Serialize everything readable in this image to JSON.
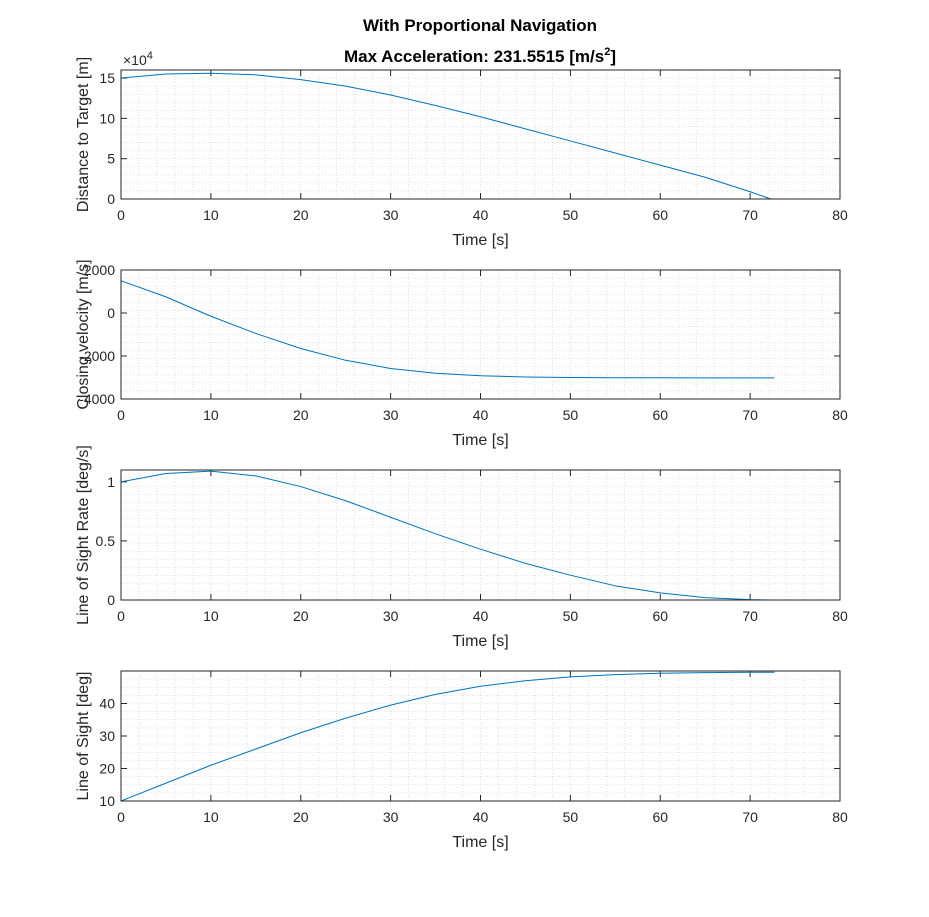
{
  "figure": {
    "title_line1": "With Proportional Navigation",
    "title_line2_prefix": "Max Acceleration: 231.5515 [m/s",
    "title_line2_sup": "2",
    "title_line2_suffix": "]"
  },
  "colors": {
    "line": "#0072BD",
    "grid": "#d0d0d0",
    "axis": "#262626"
  },
  "chart_data": [
    {
      "type": "line",
      "ylabel": "Distance to Target [m]",
      "xlabel": "Time [s]",
      "xlim": [
        0,
        80
      ],
      "ylim": [
        0,
        16
      ],
      "xticks": [
        "0",
        "10",
        "20",
        "30",
        "40",
        "50",
        "60",
        "70",
        "80"
      ],
      "yticks": [
        "0",
        "5",
        "10",
        "15"
      ],
      "y_exponent_base": "×10",
      "y_exponent_power": "4",
      "grid": true,
      "series": [
        {
          "x": [
            0,
            5,
            10,
            15,
            20,
            25,
            30,
            35,
            40,
            45,
            50,
            55,
            60,
            65,
            70,
            72.3
          ],
          "y": [
            15.0,
            15.5,
            15.6,
            15.4,
            14.8,
            14.0,
            12.9,
            11.6,
            10.2,
            8.7,
            7.2,
            5.7,
            4.2,
            2.7,
            0.9,
            0.0
          ]
        }
      ]
    },
    {
      "type": "line",
      "ylabel": "Closing velocity [m/s]",
      "xlabel": "Time [s]",
      "xlim": [
        0,
        80
      ],
      "ylim": [
        -4000,
        2000
      ],
      "xticks": [
        "0",
        "10",
        "20",
        "30",
        "40",
        "50",
        "60",
        "70",
        "80"
      ],
      "yticks": [
        "-4000",
        "-2000",
        "0",
        "2000"
      ],
      "grid": true,
      "series": [
        {
          "x": [
            0,
            5,
            10,
            15,
            20,
            25,
            30,
            35,
            40,
            45,
            50,
            55,
            60,
            65,
            70,
            72.7
          ],
          "y": [
            1500,
            750,
            -150,
            -950,
            -1650,
            -2200,
            -2580,
            -2800,
            -2920,
            -2975,
            -3000,
            -3010,
            -3010,
            -3015,
            -3015,
            -3015
          ]
        }
      ]
    },
    {
      "type": "line",
      "ylabel": "Line of Sight Rate [deg/s]",
      "xlabel": "Time [s]",
      "xlim": [
        0,
        80
      ],
      "ylim": [
        0,
        1.1
      ],
      "xticks": [
        "0",
        "10",
        "20",
        "30",
        "40",
        "50",
        "60",
        "70",
        "80"
      ],
      "yticks": [
        "0",
        "0.5",
        "1"
      ],
      "grid": true,
      "series": [
        {
          "x": [
            0,
            5,
            10,
            15,
            20,
            25,
            30,
            35,
            40,
            45,
            50,
            55,
            60,
            65,
            70,
            72.7
          ],
          "y": [
            1.0,
            1.07,
            1.09,
            1.05,
            0.96,
            0.84,
            0.7,
            0.56,
            0.43,
            0.31,
            0.21,
            0.12,
            0.06,
            0.02,
            0.003,
            0.0
          ]
        }
      ]
    },
    {
      "type": "line",
      "ylabel": "Line of Sight [deg]",
      "xlabel": "Time [s]",
      "xlim": [
        0,
        80
      ],
      "ylim": [
        10,
        50
      ],
      "xticks": [
        "0",
        "10",
        "20",
        "30",
        "40",
        "50",
        "60",
        "70",
        "80"
      ],
      "yticks": [
        "10",
        "20",
        "30",
        "40"
      ],
      "grid": true,
      "series": [
        {
          "x": [
            0,
            5,
            10,
            15,
            20,
            25,
            30,
            35,
            40,
            45,
            50,
            55,
            60,
            65,
            70,
            72.7
          ],
          "y": [
            10,
            15.5,
            21,
            26,
            31,
            35.5,
            39.5,
            42.8,
            45.3,
            47.0,
            48.2,
            48.9,
            49.3,
            49.5,
            49.6,
            49.6
          ]
        }
      ]
    }
  ]
}
